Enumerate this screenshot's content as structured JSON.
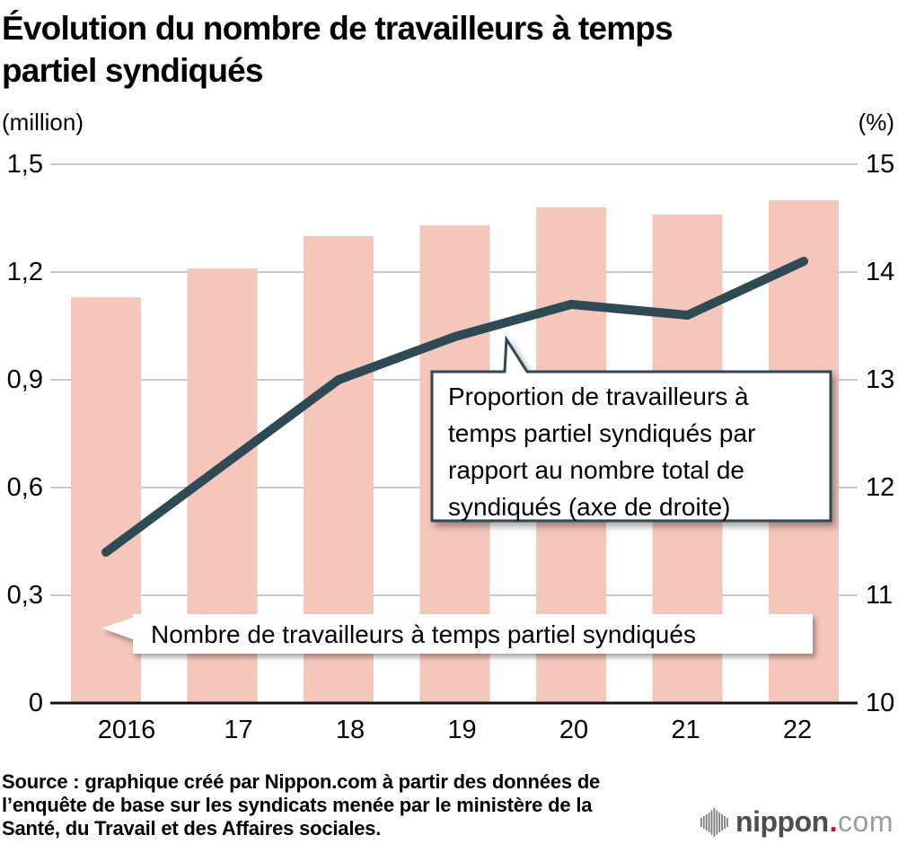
{
  "title_lines": [
    "Évolution du nombre de travailleurs à temps",
    "partiel syndiqués"
  ],
  "annotations": {
    "line_callout_lines": [
      "Proportion de travailleurs à",
      "temps partiel syndiqués par",
      "rapport au nombre total de",
      "syndiqués (axe de droite)"
    ],
    "bar_callout": "Nombre de travailleurs à temps partiel syndiqués"
  },
  "source_lines": [
    "Source : graphique créé par Nippon.com à partir des données de",
    "l’enquête de base sur les syndicats menée par le ministère de la",
    "Santé, du Travail et des Affaires sociales."
  ],
  "logo": {
    "name": "nippon",
    "dot": ".",
    "tld": "com"
  },
  "colors": {
    "bar": "#f5c6ba",
    "line": "#2d4a55",
    "grid": "#c9c9c9",
    "axis": "#111111",
    "callout_border": "#2d4a55",
    "callout_fill": "#ffffff"
  },
  "chart_data": {
    "type": "combo",
    "categories": [
      "2016",
      "17",
      "18",
      "19",
      "20",
      "21",
      "22"
    ],
    "series": [
      {
        "name": "Nombre de travailleurs à temps partiel syndiqués",
        "type": "bar",
        "axis": "left",
        "unit": "million",
        "values": [
          1.13,
          1.21,
          1.3,
          1.33,
          1.38,
          1.36,
          1.4
        ]
      },
      {
        "name": "Proportion de travailleurs à temps partiel syndiqués par rapport au nombre total de syndiqués (axe de droite)",
        "type": "line",
        "axis": "right",
        "unit": "%",
        "values": [
          11.4,
          12.2,
          13.0,
          13.4,
          13.7,
          13.6,
          14.1
        ]
      }
    ],
    "left_axis": {
      "label": "(million)",
      "range": [
        0,
        1.5
      ],
      "ticks": [
        "1,5",
        "1,2",
        "0,9",
        "0,6",
        "0,3",
        "0"
      ]
    },
    "right_axis": {
      "label": "(%)",
      "range": [
        10,
        15
      ],
      "ticks": [
        "15",
        "14",
        "13",
        "12",
        "11",
        "10"
      ]
    },
    "grid": true,
    "legend_position": "callouts-on-plot"
  }
}
